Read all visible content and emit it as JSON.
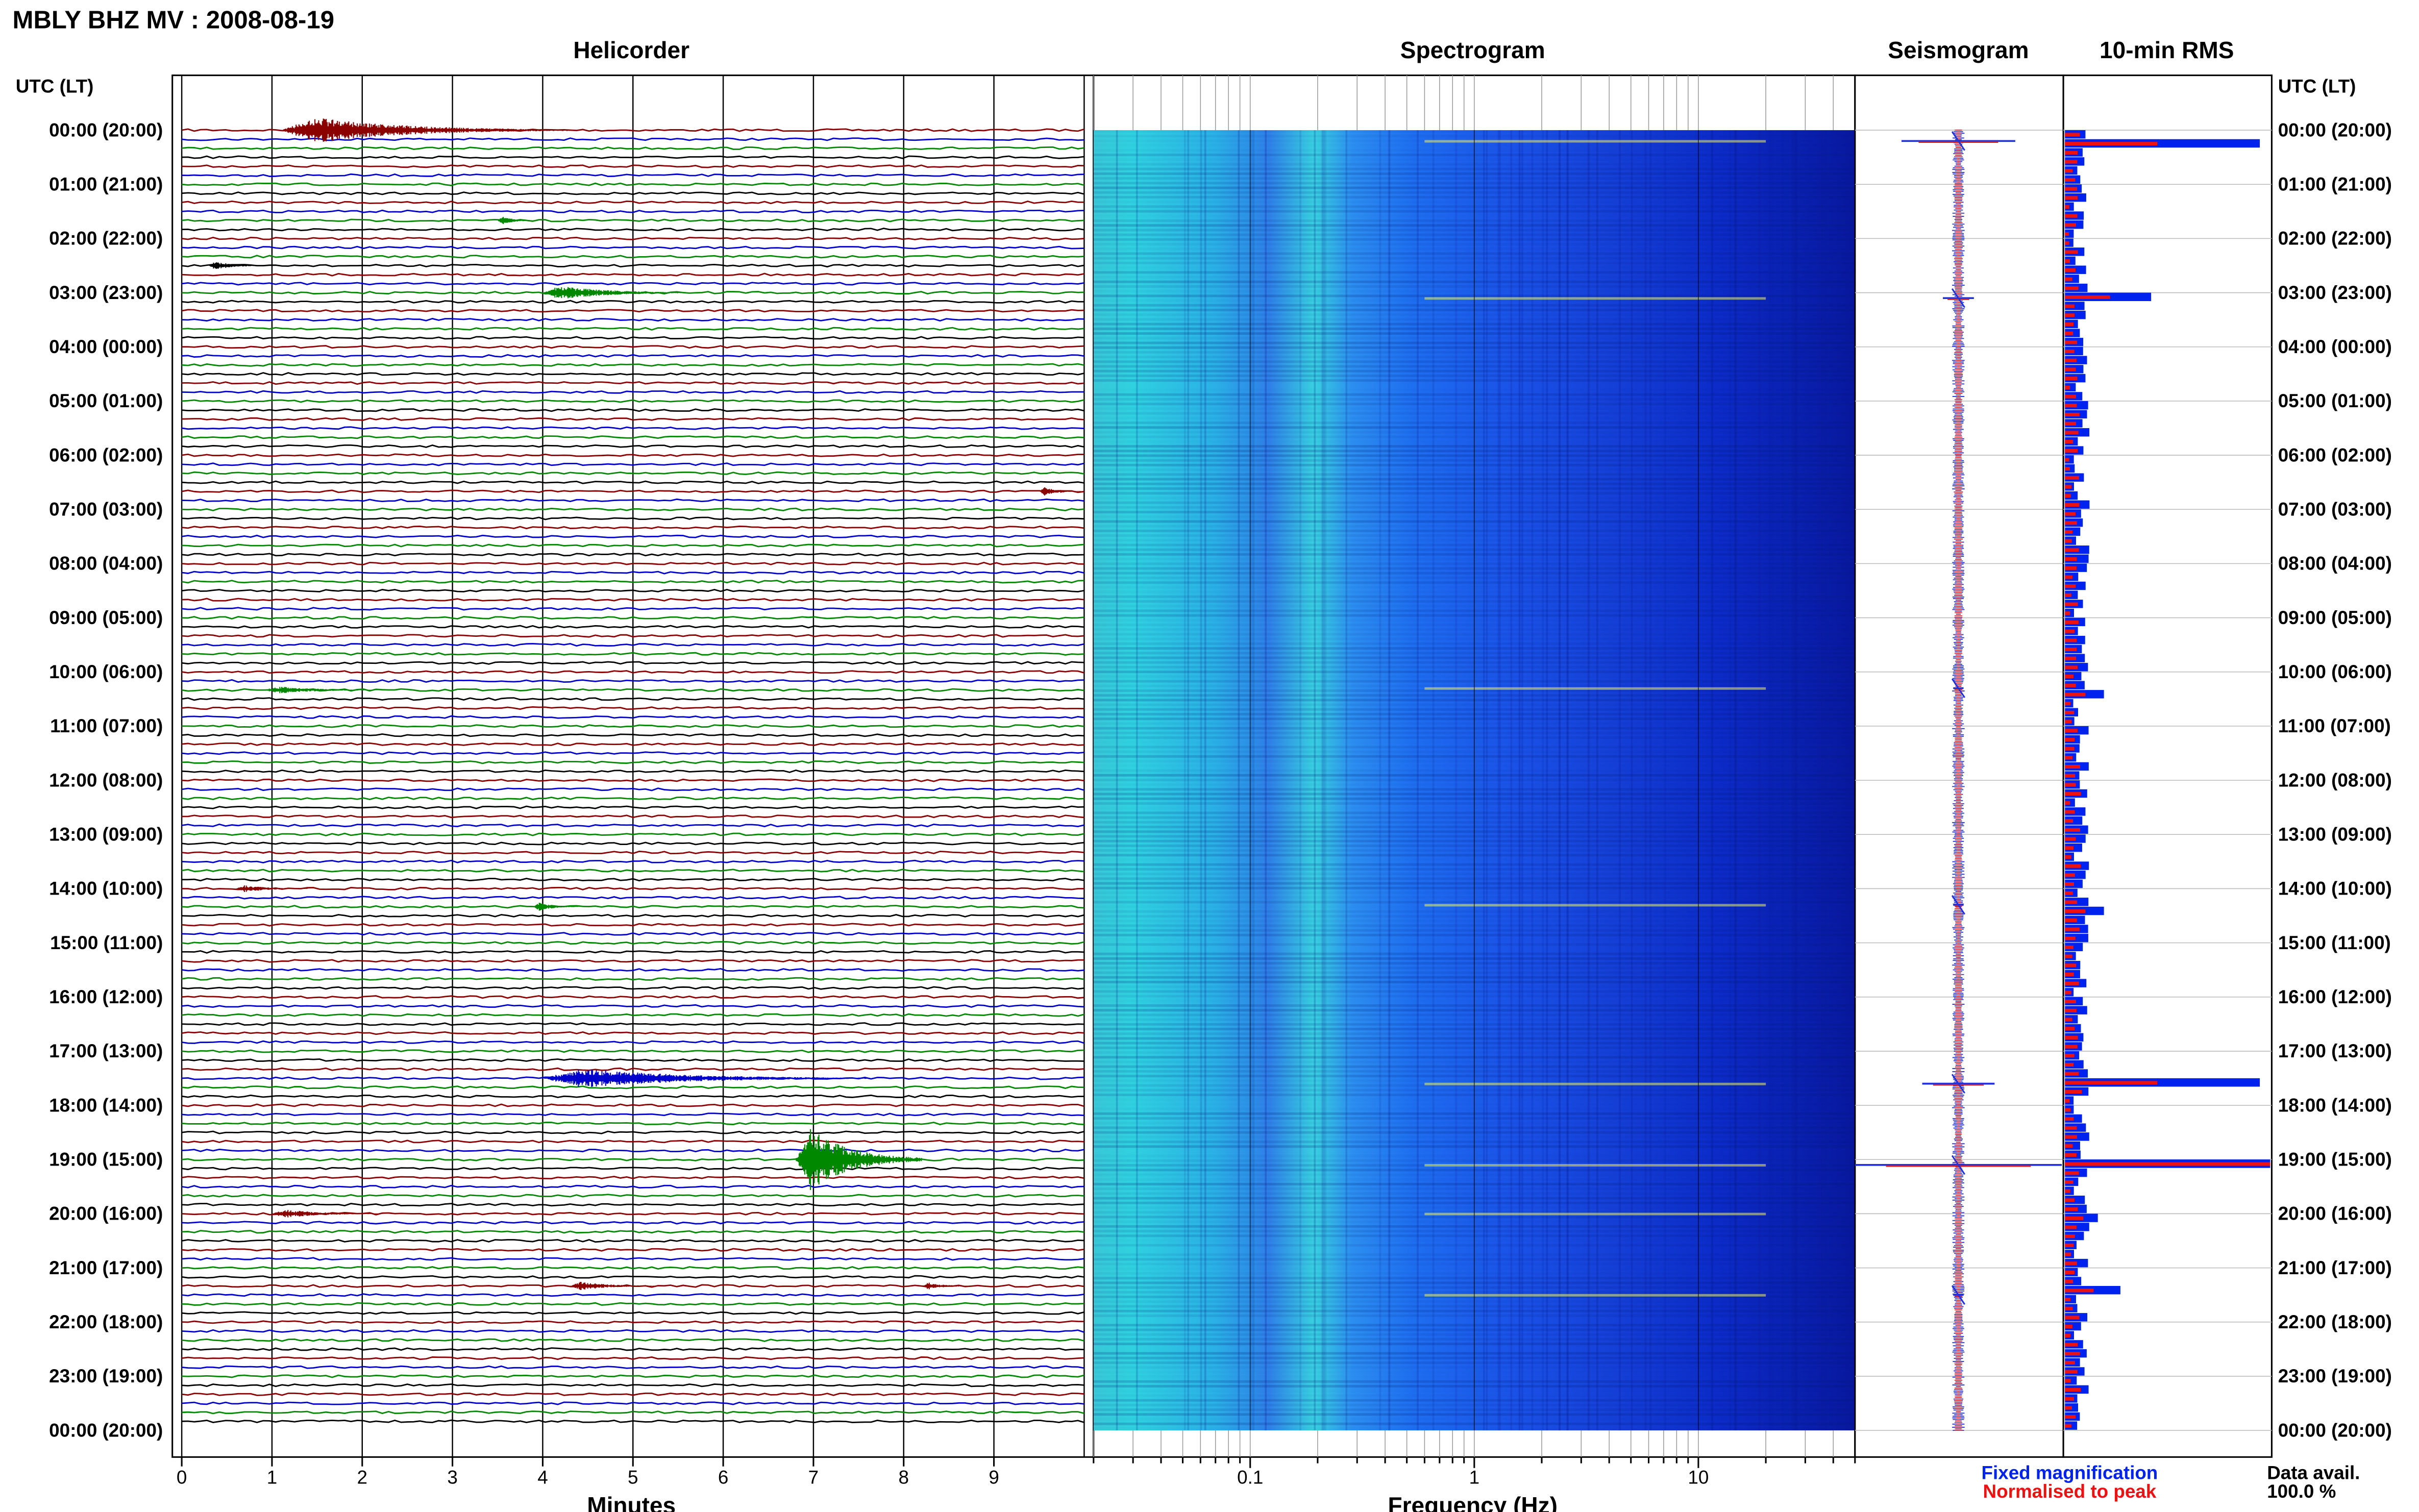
{
  "page_title": "MBLY BHZ MV : 2008-08-19",
  "left_axis_label": "UTC (LT)",
  "right_axis_label": "UTC (LT)",
  "colors": {
    "trace_cycle": [
      "#8b0000",
      "#0000cc",
      "#008800",
      "#000000"
    ],
    "rms_fixed": "#0022ee",
    "rms_normalised": "#ee1111"
  },
  "legend": {
    "fixed": "Fixed magnification",
    "normalised": "Normalised to peak",
    "data_avail_label": "Data avail.",
    "data_avail_value": "100.0 %"
  },
  "chart_data": [
    {
      "type": "line",
      "title": "Helicorder",
      "xlabel": "Minutes",
      "xlim": [
        0,
        10
      ],
      "x_ticks": [
        "0",
        "1",
        "2",
        "3",
        "4",
        "5",
        "6",
        "7",
        "8",
        "9"
      ],
      "y_ticks": [
        "00:00 (20:00)",
        "01:00 (21:00)",
        "02:00 (22:00)",
        "03:00 (23:00)",
        "04:00 (00:00)",
        "05:00 (01:00)",
        "06:00 (02:00)",
        "07:00 (03:00)",
        "08:00 (04:00)",
        "09:00 (05:00)",
        "10:00 (06:00)",
        "11:00 (07:00)",
        "12:00 (08:00)",
        "13:00 (09:00)",
        "14:00 (10:00)",
        "15:00 (11:00)",
        "16:00 (12:00)",
        "17:00 (13:00)",
        "18:00 (14:00)",
        "19:00 (15:00)",
        "20:00 (16:00)",
        "21:00 (17:00)",
        "22:00 (18:00)",
        "23:00 (19:00)",
        "00:00 (20:00)"
      ],
      "events": [
        {
          "hour": 0.05,
          "start_min": 1.1,
          "duration_min": 3.2,
          "amplitude": 0.9
        },
        {
          "hour": 1.6,
          "start_min": 3.5,
          "duration_min": 0.4,
          "amplitude": 0.3
        },
        {
          "hour": 2.45,
          "start_min": 0.3,
          "duration_min": 0.6,
          "amplitude": 0.3
        },
        {
          "hour": 2.95,
          "start_min": 4.0,
          "duration_min": 1.6,
          "amplitude": 0.5
        },
        {
          "hour": 6.65,
          "start_min": 9.5,
          "duration_min": 0.6,
          "amplitude": 0.3
        },
        {
          "hour": 10.3,
          "start_min": 0.9,
          "duration_min": 1.4,
          "amplitude": 0.25
        },
        {
          "hour": 14.0,
          "start_min": 0.6,
          "duration_min": 0.8,
          "amplitude": 0.25
        },
        {
          "hour": 14.3,
          "start_min": 3.9,
          "duration_min": 0.5,
          "amplitude": 0.3
        },
        {
          "hour": 17.55,
          "start_min": 4.0,
          "duration_min": 3.6,
          "amplitude": 0.7
        },
        {
          "hour": 18.95,
          "start_min": 6.8,
          "duration_min": 1.4,
          "amplitude": 2.2
        },
        {
          "hour": 19.95,
          "start_min": 1.0,
          "duration_min": 1.2,
          "amplitude": 0.3
        },
        {
          "hour": 21.35,
          "start_min": 4.3,
          "duration_min": 1.0,
          "amplitude": 0.3
        },
        {
          "hour": 21.35,
          "start_min": 8.2,
          "duration_min": 0.6,
          "amplitude": 0.25
        }
      ]
    },
    {
      "type": "heatmap",
      "title": "Spectrogram",
      "xlabel": "Frequency (Hz)",
      "x_scale": "log",
      "xlim": [
        0.02,
        50
      ],
      "x_ticks": [
        {
          "value": 0.1,
          "label": "0.1"
        },
        {
          "value": 1,
          "label": "1"
        },
        {
          "value": 10,
          "label": "10"
        }
      ],
      "ylim_hours": [
        0,
        24
      ],
      "event_hours": [
        0.2,
        3.1,
        10.3,
        14.3,
        17.6,
        19.1,
        20.0,
        21.5
      ]
    },
    {
      "type": "line",
      "title": "Seismogram",
      "ylim_hours": [
        0,
        24
      ],
      "spikes": [
        {
          "hour": 0.2,
          "amplitude": 0.55
        },
        {
          "hour": 3.1,
          "amplitude": 0.15
        },
        {
          "hour": 10.3,
          "amplitude": 0.05
        },
        {
          "hour": 14.3,
          "amplitude": 0.05
        },
        {
          "hour": 17.6,
          "amplitude": 0.35
        },
        {
          "hour": 19.1,
          "amplitude": 1.0
        },
        {
          "hour": 21.5,
          "amplitude": 0.05
        }
      ]
    },
    {
      "type": "bar",
      "title": "10-min RMS",
      "series": [
        {
          "name": "Fixed magnification"
        },
        {
          "name": "Normalised to peak"
        }
      ],
      "ylim_hours": [
        0,
        24
      ],
      "xlim": [
        0,
        1
      ],
      "peaks": [
        {
          "hour": 0.2,
          "fixed": 0.95,
          "normalised": 0.45
        },
        {
          "hour": 3.05,
          "fixed": 0.42,
          "normalised": 0.22
        },
        {
          "hour": 6.8,
          "fixed": 0.12,
          "normalised": 0.07
        },
        {
          "hour": 10.35,
          "fixed": 0.19,
          "normalised": 0.1
        },
        {
          "hour": 14.35,
          "fixed": 0.19,
          "normalised": 0.1
        },
        {
          "hour": 17.55,
          "fixed": 0.95,
          "normalised": 0.45
        },
        {
          "hour": 19.05,
          "fixed": 1.0,
          "normalised": 1.0
        },
        {
          "hour": 20.0,
          "fixed": 0.16,
          "normalised": 0.09
        },
        {
          "hour": 21.4,
          "fixed": 0.27,
          "normalised": 0.14
        }
      ]
    }
  ]
}
